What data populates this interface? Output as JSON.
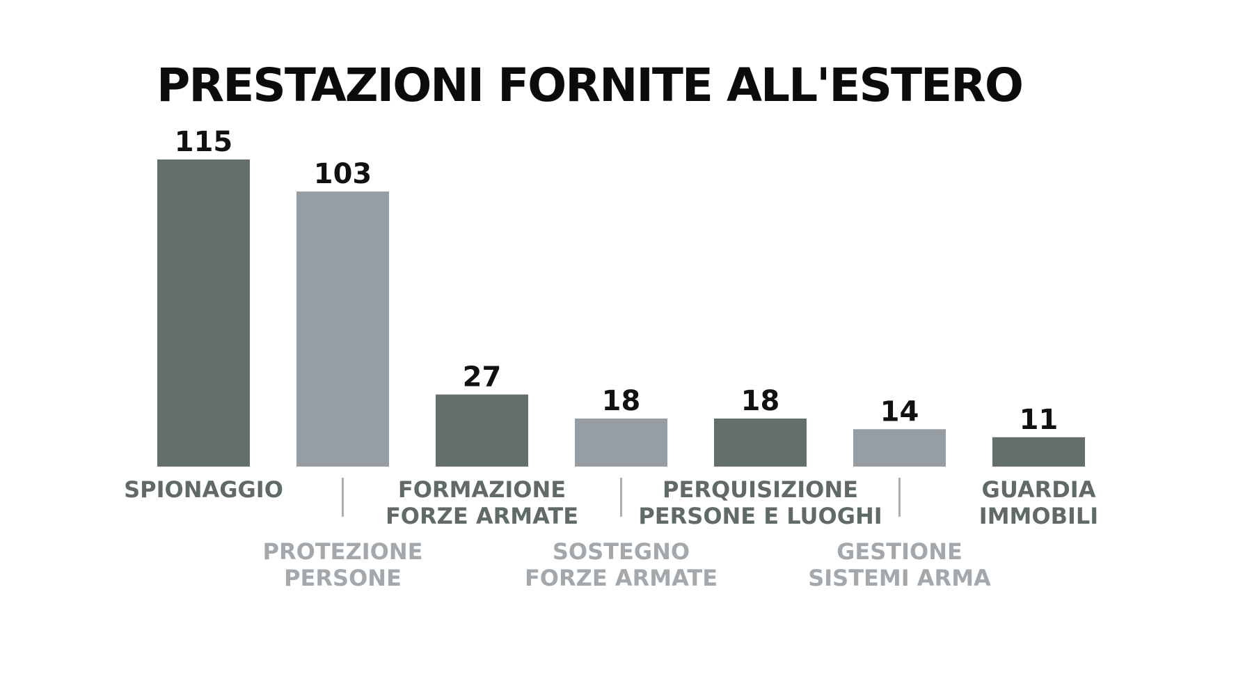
{
  "chart_data": {
    "type": "bar",
    "title": "PRESTAZIONI FORNITE ALL'ESTERO",
    "xlabel": "",
    "ylabel": "",
    "grid": false,
    "legend": "none",
    "ylim": [
      0,
      115
    ],
    "categories": [
      "SPIONAGGIO",
      "PROTEZIONE PERSONE",
      "FORMAZIONE FORZE ARMATE",
      "SOSTEGNO FORZE ARMATE",
      "PERQUISIZIONE PERSONE E LUOGHI",
      "GESTIONE SISTEMI ARMA",
      "GUARDIA IMMOBILI"
    ],
    "category_label_lines": [
      [
        "SPIONAGGIO"
      ],
      [
        "PROTEZIONE",
        "PERSONE"
      ],
      [
        "FORMAZIONE",
        "FORZE ARMATE"
      ],
      [
        "SOSTEGNO",
        "FORZE ARMATE"
      ],
      [
        "PERQUISIZIONE",
        "PERSONE E LUOGHI"
      ],
      [
        "GESTIONE",
        "SISTEMI ARMA"
      ],
      [
        "GUARDIA",
        "IMMOBILI"
      ]
    ],
    "values": [
      115,
      103,
      27,
      18,
      18,
      14,
      11
    ],
    "colors": {
      "bar_dark": "#636e6d",
      "bar_light": "#979ea3",
      "label_dark": "#5f6a69",
      "label_light": "#a2a8ac",
      "separator": "#a8aeb1"
    }
  }
}
